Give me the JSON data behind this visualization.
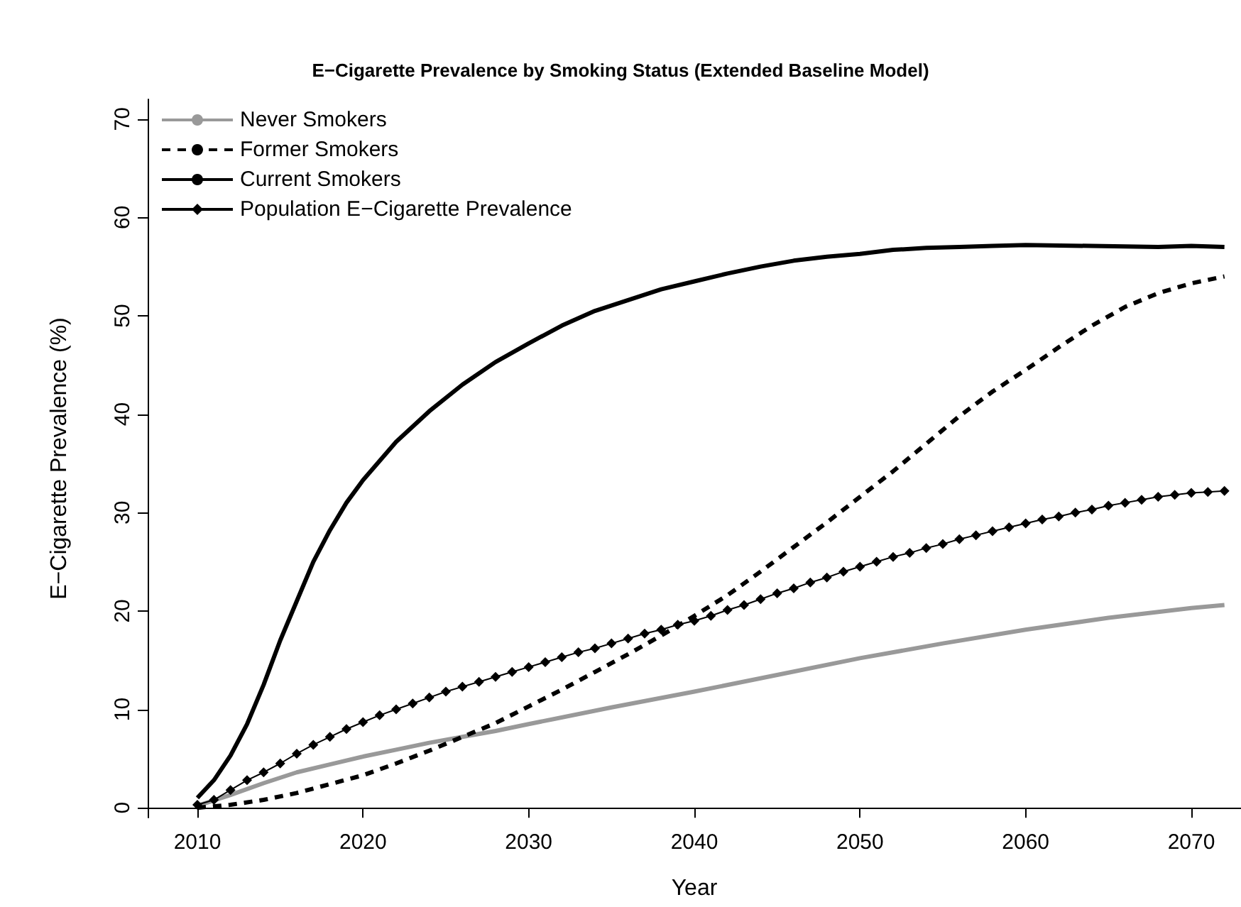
{
  "chart_data": {
    "type": "line",
    "title": "E−Cigarette Prevalence by Smoking Status (Extended Baseline Model)",
    "xlabel": "Year",
    "ylabel": "E−Cigarette Prevalence (%)",
    "xlim": [
      2007,
      2073
    ],
    "xticks": [
      2010,
      2020,
      2030,
      2040,
      2050,
      2060,
      2070
    ],
    "ylim": [
      -1,
      72
    ],
    "yticks": [
      0,
      10,
      20,
      30,
      40,
      50,
      60,
      70
    ],
    "grid": false,
    "legend": "top left",
    "series": [
      {
        "name": "Never Smokers",
        "color": "#999999",
        "line_style": "solid",
        "marker": "none",
        "x": [
          2010,
          2012,
          2014,
          2016,
          2018,
          2020,
          2022,
          2024,
          2026,
          2028,
          2030,
          2035,
          2040,
          2045,
          2050,
          2055,
          2060,
          2065,
          2070,
          2072
        ],
        "values": [
          0.2,
          1.3,
          2.5,
          3.6,
          4.4,
          5.2,
          5.9,
          6.6,
          7.2,
          7.8,
          8.5,
          10.2,
          11.8,
          13.5,
          15.2,
          16.7,
          18.1,
          19.3,
          20.3,
          20.6
        ]
      },
      {
        "name": "Former Smokers",
        "color": "#000000",
        "line_style": "dashed",
        "marker": "none",
        "x": [
          2010,
          2012,
          2014,
          2016,
          2018,
          2020,
          2022,
          2024,
          2026,
          2028,
          2030,
          2032,
          2034,
          2036,
          2038,
          2040,
          2042,
          2044,
          2046,
          2048,
          2050,
          2052,
          2054,
          2056,
          2058,
          2060,
          2062,
          2064,
          2066,
          2068,
          2070,
          2072
        ],
        "values": [
          0,
          0.3,
          0.8,
          1.5,
          2.4,
          3.3,
          4.5,
          5.8,
          7.2,
          8.6,
          10.3,
          12.0,
          13.8,
          15.6,
          17.5,
          19.5,
          21.6,
          24.0,
          26.5,
          29.0,
          31.6,
          34.2,
          37.0,
          39.8,
          42.3,
          44.5,
          46.8,
          49.0,
          50.9,
          52.3,
          53.3,
          54.0
        ]
      },
      {
        "name": "Current Smokers",
        "color": "#000000",
        "line_style": "solid",
        "marker": "none",
        "x": [
          2010,
          2011,
          2012,
          2013,
          2014,
          2015,
          2016,
          2017,
          2018,
          2019,
          2020,
          2022,
          2024,
          2026,
          2028,
          2030,
          2032,
          2034,
          2036,
          2038,
          2040,
          2042,
          2044,
          2046,
          2048,
          2050,
          2052,
          2054,
          2056,
          2058,
          2060,
          2064,
          2068,
          2070,
          2072
        ],
        "values": [
          1,
          2.8,
          5.3,
          8.5,
          12.5,
          17,
          21,
          25,
          28.2,
          31,
          33.3,
          37.2,
          40.3,
          43,
          45.3,
          47.2,
          49.0,
          50.5,
          51.6,
          52.7,
          53.5,
          54.3,
          55.0,
          55.6,
          56.0,
          56.3,
          56.7,
          56.9,
          57.0,
          57.1,
          57.2,
          57.1,
          57.0,
          57.1,
          57.0
        ]
      },
      {
        "name": "Population E−Cigarette Prevalence",
        "color": "#000000",
        "line_style": "solid",
        "marker": "diamond",
        "x": [
          2010,
          2011,
          2012,
          2013,
          2014,
          2015,
          2016,
          2017,
          2018,
          2019,
          2020,
          2021,
          2022,
          2023,
          2024,
          2025,
          2026,
          2027,
          2028,
          2029,
          2030,
          2031,
          2032,
          2033,
          2034,
          2035,
          2036,
          2037,
          2038,
          2039,
          2040,
          2041,
          2042,
          2043,
          2044,
          2045,
          2046,
          2047,
          2048,
          2049,
          2050,
          2051,
          2052,
          2053,
          2054,
          2055,
          2056,
          2057,
          2058,
          2059,
          2060,
          2061,
          2062,
          2063,
          2064,
          2065,
          2066,
          2067,
          2068,
          2069,
          2070,
          2071,
          2072
        ],
        "values": [
          0.3,
          0.8,
          1.8,
          2.8,
          3.6,
          4.5,
          5.5,
          6.4,
          7.2,
          8.0,
          8.7,
          9.4,
          10.0,
          10.6,
          11.2,
          11.8,
          12.3,
          12.8,
          13.3,
          13.8,
          14.3,
          14.8,
          15.3,
          15.8,
          16.2,
          16.7,
          17.2,
          17.7,
          18.1,
          18.6,
          19.0,
          19.5,
          20.1,
          20.6,
          21.2,
          21.8,
          22.3,
          22.9,
          23.4,
          24.0,
          24.5,
          25.0,
          25.5,
          25.9,
          26.4,
          26.8,
          27.3,
          27.7,
          28.1,
          28.5,
          28.9,
          29.3,
          29.6,
          30.0,
          30.3,
          30.7,
          31.0,
          31.3,
          31.6,
          31.8,
          32.0,
          32.1,
          32.2
        ]
      }
    ]
  }
}
